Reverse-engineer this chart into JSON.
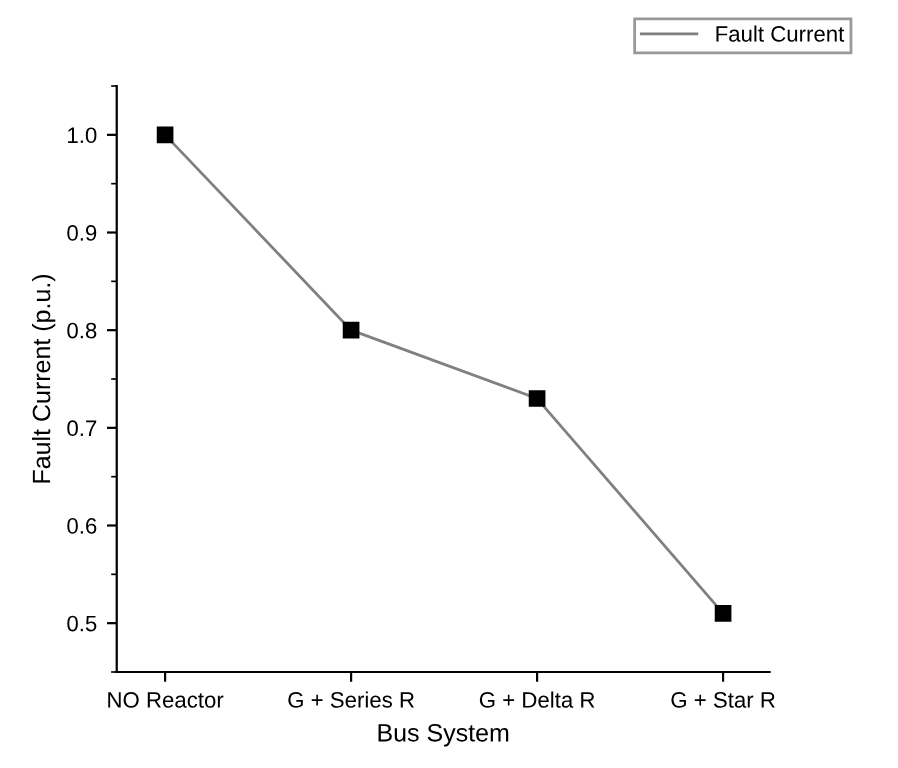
{
  "chart_data": {
    "type": "line",
    "xlabel": "Bus System",
    "ylabel": "Fault Current (p.u.)",
    "categories": [
      "NO Reactor",
      "G + Series R",
      "G + Delta R",
      "G + Star R"
    ],
    "series": [
      {
        "name": "Fault Current",
        "color": "#808080",
        "values": [
          1.0,
          0.8,
          0.73,
          0.51
        ]
      }
    ],
    "ylim": [
      0.45,
      1.05
    ],
    "yticks": [
      0.5,
      0.6,
      0.7,
      0.8,
      0.9,
      {
        "value": 1.0,
        "label": "1.0"
      }
    ],
    "marker": "square",
    "line_style": "solid",
    "grid": false,
    "legend": "top right"
  }
}
